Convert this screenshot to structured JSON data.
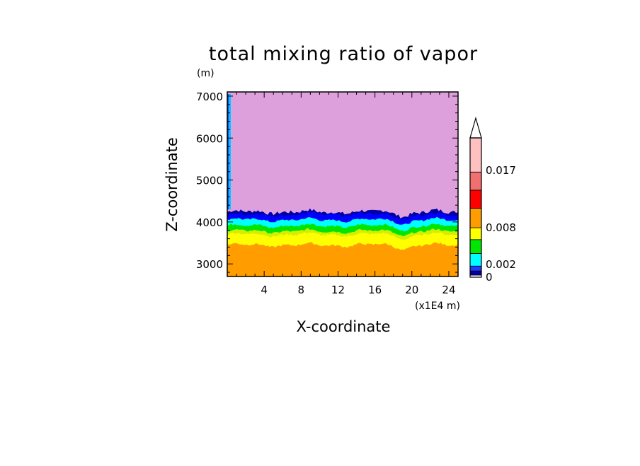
{
  "chart_data": {
    "type": "heatmap",
    "title": "total mixing ratio of vapor",
    "xlabel": "X-coordinate",
    "ylabel": "Z-coordinate",
    "x_unit": "(x1E4 m)",
    "y_unit": "(m)",
    "xlim": [
      0,
      25
    ],
    "ylim": [
      2700,
      7100
    ],
    "x_ticks": [
      4,
      8,
      12,
      16,
      20,
      24
    ],
    "x_tick_labels": [
      "4",
      "8",
      "12",
      "16",
      "20",
      "24"
    ],
    "y_ticks": [
      3000,
      4000,
      5000,
      6000,
      7000
    ],
    "y_tick_labels": [
      "3000",
      "4000",
      "5000",
      "6000",
      "7000"
    ],
    "colorbar": {
      "labels": [
        {
          "value": 0.017,
          "text": "0.017"
        },
        {
          "value": 0.008,
          "text": "0.008"
        },
        {
          "value": 0.002,
          "text": "0.002"
        },
        {
          "value": 0,
          "text": "0"
        }
      ],
      "extend": "max",
      "levels": [
        {
          "color": "#ffffff"
        },
        {
          "color": "#0000a0"
        },
        {
          "color": "#1e3cff"
        },
        {
          "color": "#00c8ff"
        },
        {
          "color": "#00dc00"
        },
        {
          "color": "#a0e632"
        },
        {
          "color": "#e6dc32"
        },
        {
          "color": "#ffff00"
        },
        {
          "color": "#ff9c00"
        },
        {
          "color": "#ff9c00"
        },
        {
          "color": "#ff9c00"
        },
        {
          "color": "#ff0000"
        },
        {
          "color": "#f07070"
        },
        {
          "color": "#ffc0c0"
        },
        {
          "color": "#ffc0c0"
        }
      ]
    },
    "bands": [
      {
        "name": "orange",
        "color": "#ff9c00",
        "z_top": 3450
      },
      {
        "name": "yellow",
        "color": "#ffff00",
        "z_top": 3700
      },
      {
        "name": "yellow-green",
        "color": "#d4ee00",
        "z_top": 3780
      },
      {
        "name": "green",
        "color": "#00e600",
        "z_top": 3910
      },
      {
        "name": "cyan",
        "color": "#00ffff",
        "z_top": 4050
      },
      {
        "name": "blue",
        "color": "#0000ff",
        "z_top": 4180
      },
      {
        "name": "dark-blue",
        "color": "#0000a0",
        "z_top": 4240
      },
      {
        "name": "upper",
        "color": "#dda0dd",
        "z_top": 7100
      }
    ],
    "grid": false,
    "legend_position": "right"
  }
}
